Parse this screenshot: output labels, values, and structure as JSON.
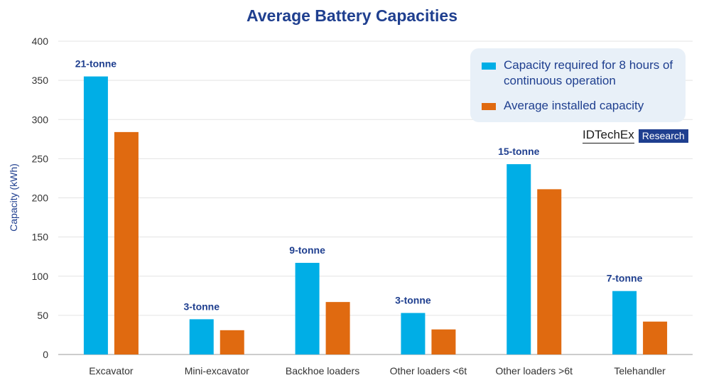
{
  "chart_data": {
    "type": "bar",
    "title": "Average Battery Capacities",
    "ylabel": "Capacity (kWh)",
    "xlabel": "",
    "ylim": [
      0,
      400
    ],
    "yticks": [
      0,
      50,
      100,
      150,
      200,
      250,
      300,
      350,
      400
    ],
    "grid": true,
    "legend_position": "top-right",
    "categories": [
      "Excavator",
      "Mini-excavator",
      "Backhoe loaders",
      "Other loaders <6t",
      "Other loaders >6t",
      "Telehandler"
    ],
    "annotations": [
      "21-tonne",
      "3-tonne",
      "9-tonne",
      "3-tonne",
      "15-tonne",
      "7-tonne"
    ],
    "series": [
      {
        "name": "Capacity required for 8 hours of continuous operation",
        "color": "#00aee6",
        "values": [
          355,
          45,
          117,
          53,
          243,
          81
        ]
      },
      {
        "name": "Average installed capacity",
        "color": "#e06a10",
        "values": [
          284,
          31,
          67,
          32,
          211,
          42
        ]
      }
    ]
  },
  "brand": {
    "name": "IDTechEx",
    "tag": "Research"
  }
}
